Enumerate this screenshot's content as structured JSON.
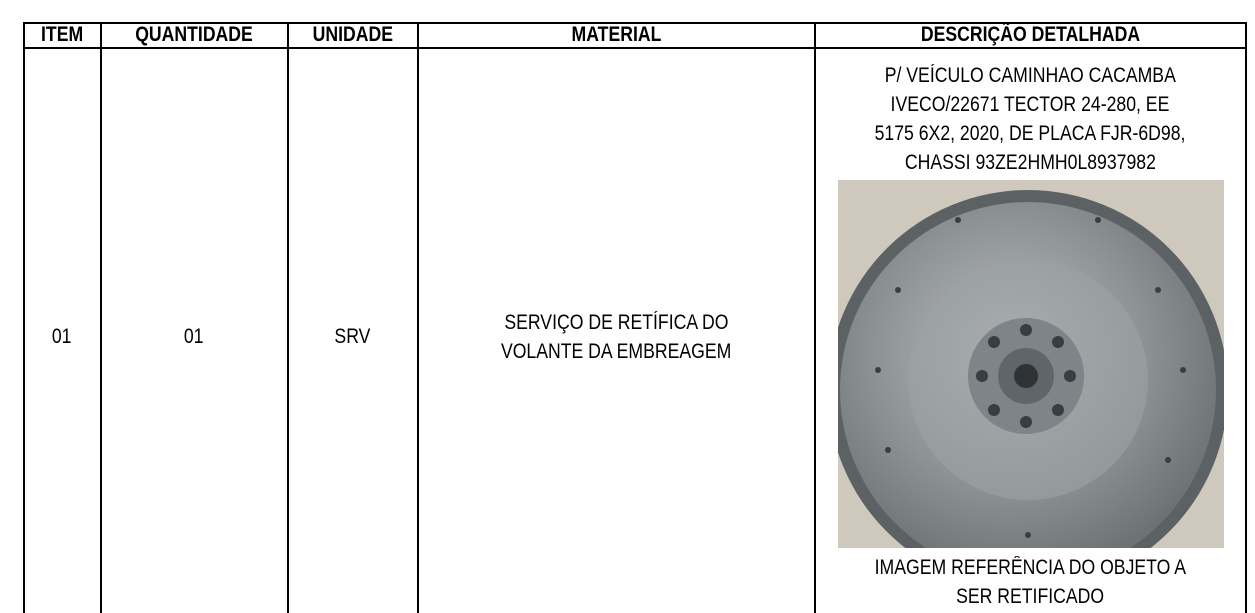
{
  "table": {
    "header": [
      "ITEM",
      "QUANTIDADE",
      "UNIDADE",
      "MATERIAL",
      "DESCRIÇÃO DETALHADA"
    ],
    "rows": [
      {
        "item": "01",
        "quantidade": "01",
        "unidade": "SRV",
        "material": [
          "SERVIÇO DE RETÍFICA DO",
          "VOLANTE DA EMBREAGEM"
        ],
        "descricao": {
          "text": [
            "P/ VEÍCULO CAMINHAO CACAMBA",
            "IVECO/22671 TECTOR 24-280, EE",
            "5175 6X2, 2020, DE PLACA FJR-6D98,",
            "CHASSI 93ZE2HMH0L8937982"
          ],
          "caption": [
            "IMAGEM REFERÊNCIA DO OBJETO A",
            "SER RETIFICADO"
          ]
        }
      }
    ]
  }
}
